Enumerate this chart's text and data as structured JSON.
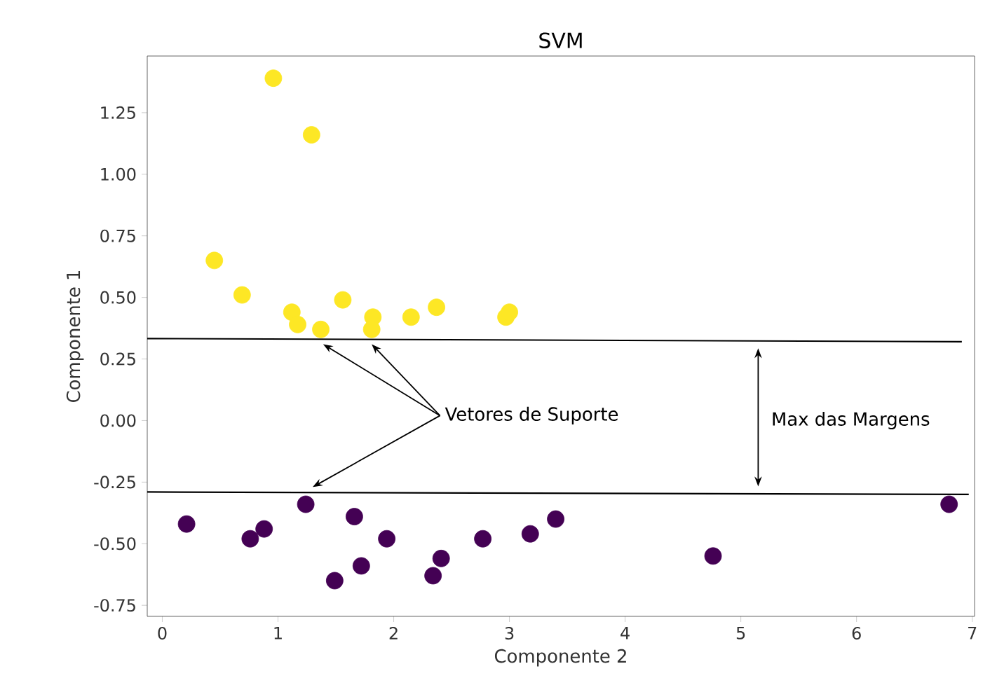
{
  "chart_data": {
    "type": "scatter",
    "title": "SVM",
    "xlabel": "Componente 2",
    "ylabel": "Componente 1",
    "annotations": [
      {
        "text": "Vetores de Suporte",
        "x": 1.39,
        "y": 0.31
      },
      "Max das Margens"
    ],
    "xlim": [
      -0.13,
      7.02
    ],
    "ylim": [
      -0.795,
      1.48
    ],
    "xticks": [
      0,
      1,
      2,
      3,
      4,
      5,
      6,
      7
    ],
    "yticks": [
      {
        "value": -0.75,
        "label": "-0.75"
      },
      {
        "value": -0.5,
        "label": "-0.50"
      },
      {
        "value": -0.25,
        "label": "-0.25"
      },
      {
        "value": 0,
        "label": "0.00"
      },
      {
        "value": 0.25,
        "label": "0.25"
      },
      {
        "value": 0.5,
        "label": "0.50"
      },
      {
        "value": 0.75,
        "label": "0.75"
      },
      {
        "value": 1,
        "label": "1.00"
      },
      {
        "value": 1.25,
        "label": "1.25"
      }
    ],
    "series": [
      {
        "type": "scatter",
        "marker": "circle",
        "color": "#fde725",
        "x": [
          0.96,
          1.29,
          0.45,
          0.69,
          1.12,
          1.17,
          1.37,
          1.56,
          1.82,
          1.81,
          2.15,
          2.37,
          2.97,
          3.0
        ],
        "values": [
          1.39,
          1.16,
          0.65,
          0.51,
          0.44,
          0.39,
          0.37,
          0.49,
          0.42,
          0.37,
          0.42,
          0.46,
          0.42,
          0.44
        ]
      },
      {
        "type": "scatter",
        "marker": "circle",
        "color": "#440154",
        "x": [
          0.21,
          0.76,
          0.88,
          1.24,
          1.49,
          1.66,
          1.72,
          1.94,
          2.34,
          2.41,
          2.77,
          3.18,
          3.4,
          4.76,
          6.8
        ],
        "values": [
          -0.42,
          -0.48,
          -0.44,
          -0.34,
          -0.65,
          -0.39,
          -0.59,
          -0.48,
          -0.63,
          -0.56,
          -0.48,
          -0.46,
          -0.4,
          -0.55,
          -0.34
        ]
      },
      {
        "type": "line",
        "marker": "none",
        "line_style": "solid",
        "color": "#000000",
        "x": [
          -0.13,
          6.91
        ],
        "values": [
          0.333,
          0.32
        ]
      },
      {
        "type": "line",
        "marker": "none",
        "line_style": "solid",
        "color": "#000000",
        "x": [
          -0.13,
          6.97
        ],
        "values": [
          -0.29,
          -0.3
        ]
      }
    ]
  }
}
